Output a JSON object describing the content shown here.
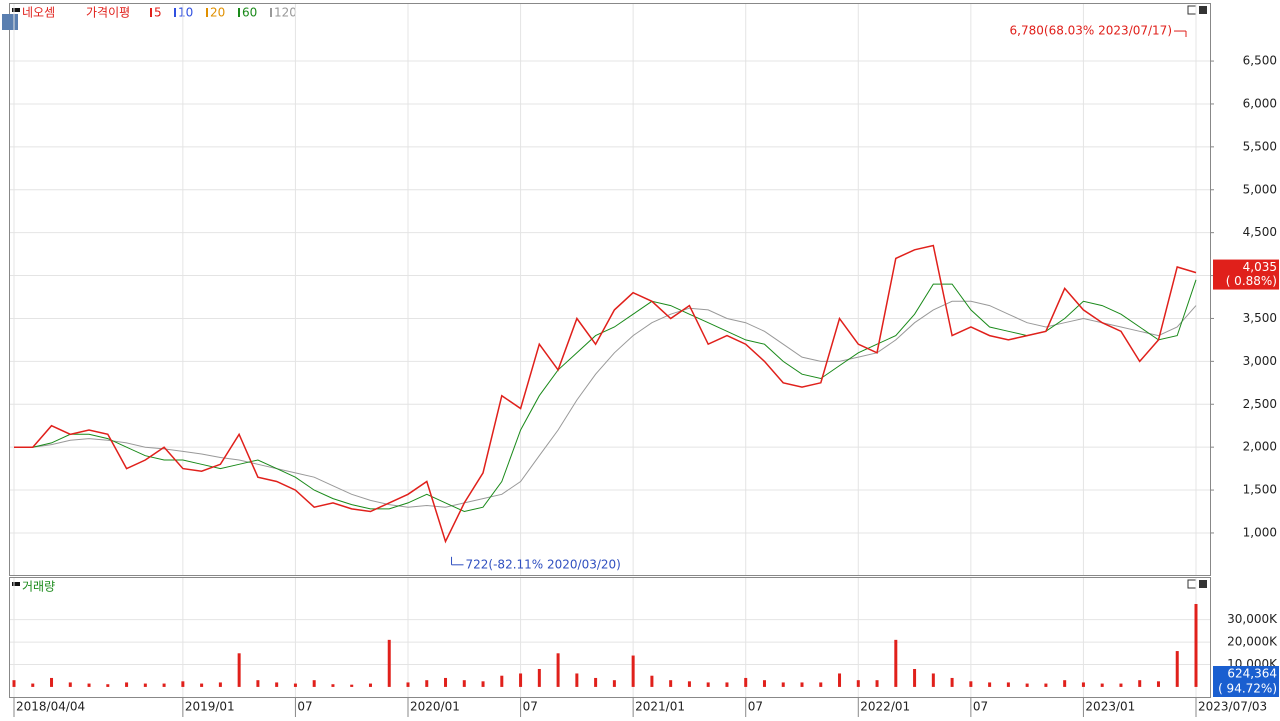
{
  "chart_data": {
    "type": "line",
    "title": "네오셈",
    "ma_label": "가격이평",
    "ma_legend": [
      {
        "name": "5",
        "color": "#e0201b"
      },
      {
        "name": "10",
        "color": "#3050e0"
      },
      {
        "name": "20",
        "color": "#e09000"
      },
      {
        "name": "60",
        "color": "#1a8a1a"
      },
      {
        "name": "120",
        "color": "#999999"
      }
    ],
    "categories": [
      "2018/04/04",
      null,
      null,
      null,
      null,
      null,
      null,
      null,
      null,
      "2019/01",
      null,
      null,
      null,
      null,
      null,
      "07",
      null,
      null,
      null,
      null,
      null,
      "2020/01",
      null,
      null,
      null,
      null,
      null,
      "07",
      null,
      null,
      null,
      null,
      null,
      "2021/01",
      null,
      null,
      null,
      null,
      null,
      "07",
      null,
      null,
      null,
      null,
      null,
      "2022/01",
      null,
      null,
      null,
      null,
      null,
      "07",
      null,
      null,
      null,
      null,
      null,
      "2023/01",
      null,
      null,
      null,
      null,
      null,
      "2023/07/03"
    ],
    "series": [
      {
        "name": "네오셈",
        "color": "#e0201b",
        "values": [
          2000,
          2000,
          2250,
          2150,
          2200,
          2150,
          1750,
          1850,
          2000,
          1750,
          1720,
          1800,
          2150,
          1650,
          1600,
          1500,
          1300,
          1350,
          1280,
          1250,
          1350,
          1450,
          1600,
          900,
          1350,
          1700,
          2600,
          2450,
          3200,
          2900,
          3500,
          3200,
          3600,
          3800,
          3700,
          3500,
          3650,
          3200,
          3300,
          3200,
          3000,
          2750,
          2700,
          2750,
          3500,
          3200,
          3100,
          4200,
          4300,
          4350,
          3300,
          3400,
          3300,
          3250,
          3300,
          3350,
          3850,
          3600,
          3450,
          3350,
          3000,
          3250,
          4100,
          4035
        ]
      },
      {
        "name": "60",
        "color": "#1a8a1a",
        "values": [
          2000,
          2000,
          2050,
          2150,
          2150,
          2100,
          2000,
          1900,
          1850,
          1850,
          1800,
          1750,
          1800,
          1850,
          1750,
          1650,
          1500,
          1400,
          1330,
          1280,
          1280,
          1350,
          1450,
          1350,
          1250,
          1300,
          1600,
          2200,
          2600,
          2900,
          3100,
          3300,
          3400,
          3550,
          3700,
          3650,
          3550,
          3450,
          3350,
          3250,
          3200,
          3000,
          2850,
          2800,
          2950,
          3100,
          3200,
          3300,
          3550,
          3900,
          3900,
          3600,
          3400,
          3350,
          3300,
          3350,
          3500,
          3700,
          3650,
          3550,
          3400,
          3250,
          3300,
          3950
        ]
      },
      {
        "name": "120",
        "color": "#999999",
        "values": [
          2000,
          2000,
          2030,
          2080,
          2100,
          2080,
          2050,
          2000,
          1980,
          1950,
          1920,
          1880,
          1850,
          1800,
          1750,
          1700,
          1650,
          1550,
          1450,
          1380,
          1330,
          1300,
          1320,
          1300,
          1350,
          1400,
          1450,
          1600,
          1900,
          2200,
          2550,
          2850,
          3100,
          3300,
          3450,
          3550,
          3620,
          3600,
          3500,
          3450,
          3350,
          3200,
          3050,
          3000,
          3000,
          3050,
          3100,
          3250,
          3450,
          3600,
          3700,
          3700,
          3650,
          3550,
          3450,
          3400,
          3450,
          3500,
          3450,
          3400,
          3350,
          3300,
          3400,
          3650
        ]
      }
    ],
    "ylim": [
      510,
      7165
    ],
    "yticks": [
      {
        "value": 1000,
        "label": "1,000"
      },
      {
        "value": 1500,
        "label": "1,500"
      },
      {
        "value": 2000,
        "label": "2,000"
      },
      {
        "value": 2500,
        "label": "2,500"
      },
      {
        "value": 3000,
        "label": "3,000"
      },
      {
        "value": 3500,
        "label": "3,500"
      },
      {
        "value": 4000,
        "label": "4,000"
      },
      {
        "value": 4500,
        "label": "4,500"
      },
      {
        "value": 5000,
        "label": "5,000"
      },
      {
        "value": 5500,
        "label": "5,500"
      },
      {
        "value": 6000,
        "label": "6,000"
      },
      {
        "value": 6500,
        "label": "6,500"
      }
    ],
    "grid": true,
    "annotations": [
      {
        "label": "6,780(68.03% 2023/07/17)",
        "value": 6780
      },
      {
        "label": "722(-82.11% 2020/03/20)",
        "value": 722
      }
    ],
    "last_price": {
      "value": 4035,
      "label": "4,035",
      "change_label": "( 0.88%)"
    },
    "volume": {
      "title": "거래량",
      "color": "#e0201b",
      "values": [
        3000,
        1500,
        4000,
        2000,
        1500,
        1200,
        2000,
        1500,
        1500,
        2500,
        1500,
        2000,
        15000,
        3000,
        2000,
        1500,
        3000,
        1200,
        1000,
        1500,
        21000,
        2000,
        3000,
        4000,
        3000,
        2500,
        5000,
        6000,
        8000,
        15000,
        6000,
        4000,
        3000,
        14000,
        5000,
        3000,
        2500,
        2000,
        2000,
        4000,
        3000,
        2000,
        2000,
        2000,
        6000,
        3000,
        3000,
        21000,
        8000,
        6000,
        4000,
        2500,
        2000,
        2000,
        1500,
        1500,
        3000,
        2000,
        1500,
        1500,
        3000,
        2500,
        16000,
        37000
      ],
      "ylim": [
        -4500,
        48600
      ],
      "yticks": [
        {
          "value": 10000,
          "label": "10,000K"
        },
        {
          "value": 20000,
          "label": "20,000K"
        },
        {
          "value": 30000,
          "label": "30,000K"
        }
      ],
      "last_label": "624,364",
      "change_label": "( 94.72%)"
    }
  }
}
